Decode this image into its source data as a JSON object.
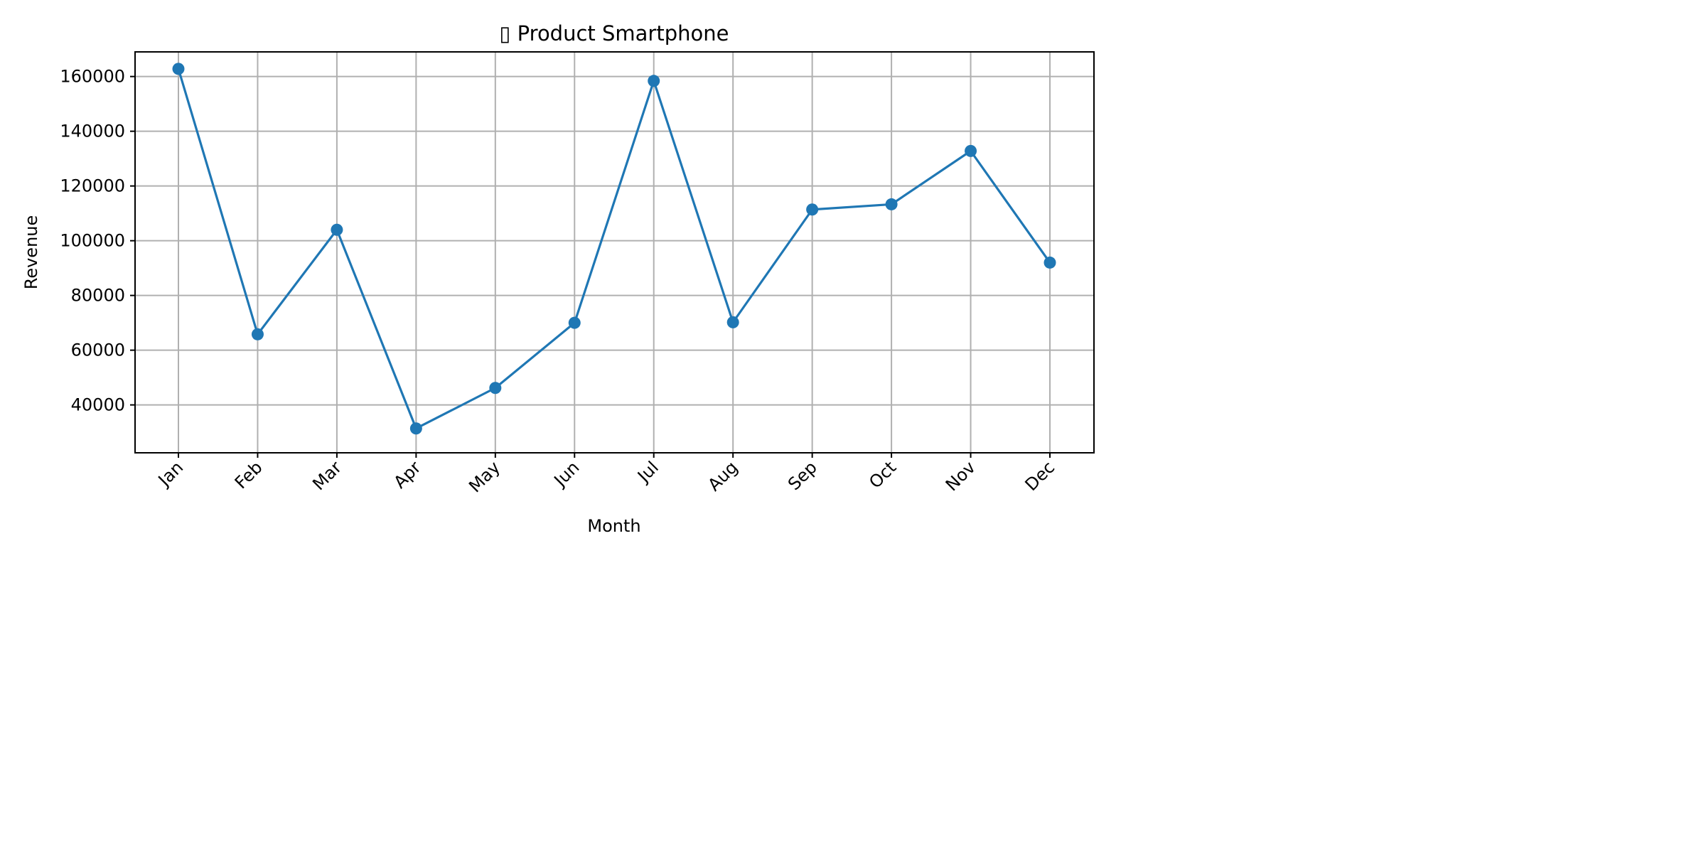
{
  "chart_data": {
    "type": "line",
    "title": "▯ Product Smartphone",
    "xlabel": "Month",
    "ylabel": "Revenue",
    "categories": [
      "Jan",
      "Feb",
      "Mar",
      "Apr",
      "May",
      "Jun",
      "Jul",
      "Aug",
      "Sep",
      "Oct",
      "Nov",
      "Dec"
    ],
    "series": [
      {
        "values": [
          162800,
          65800,
          104000,
          31400,
          46200,
          70000,
          158400,
          70200,
          111400,
          113300,
          132800,
          92000
        ]
      }
    ],
    "yticks": [
      40000,
      60000,
      80000,
      100000,
      120000,
      140000,
      160000
    ],
    "ylim": [
      22500,
      169000
    ],
    "grid": true,
    "colors": {
      "line": "#1f77b4",
      "grid": "#b0b0b0"
    }
  }
}
